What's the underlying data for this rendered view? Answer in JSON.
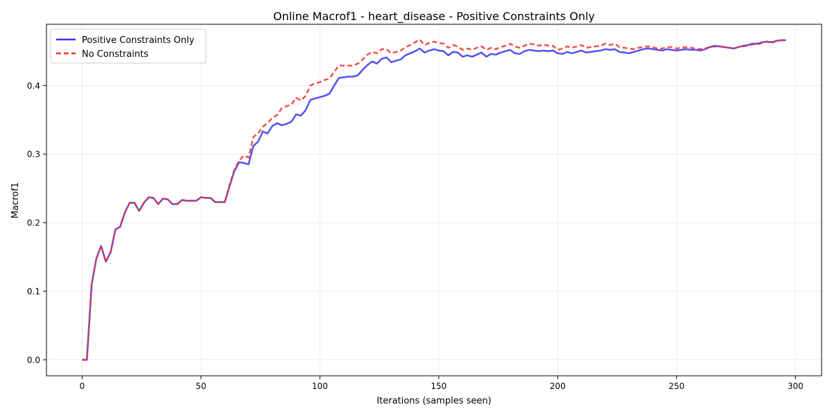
{
  "chart_data": {
    "type": "line",
    "title": "Online Macrof1 - heart_disease - Positive Constraints Only",
    "xlabel": "Iterations (samples seen)",
    "ylabel": "Macrof1",
    "xlim": [
      -15,
      311
    ],
    "ylim": [
      -0.0233,
      0.4893
    ],
    "xticks": [
      0,
      50,
      100,
      150,
      200,
      250,
      300
    ],
    "yticks": [
      0.0,
      0.1,
      0.2,
      0.3,
      0.4
    ],
    "xtick_labels": [
      "0",
      "50",
      "100",
      "150",
      "200",
      "250",
      "300"
    ],
    "ytick_labels": [
      "0.0",
      "0.1",
      "0.2",
      "0.3",
      "0.4"
    ],
    "grid": true,
    "legend_position": "upper-left",
    "series": [
      {
        "name": "Positive Constraints Only",
        "color": "#3333ee",
        "dash": "solid",
        "x": [
          0,
          2,
          4,
          6,
          8,
          10,
          12,
          14,
          16,
          18,
          20,
          22,
          24,
          26,
          28,
          30,
          32,
          34,
          36,
          38,
          40,
          42,
          44,
          46,
          48,
          50,
          52,
          54,
          56,
          58,
          60,
          62,
          64,
          66,
          68,
          70,
          72,
          74,
          76,
          78,
          80,
          82,
          84,
          86,
          88,
          90,
          92,
          94,
          96,
          98,
          100,
          102,
          104,
          106,
          108,
          110,
          112,
          114,
          116,
          118,
          120,
          122,
          124,
          126,
          128,
          130,
          132,
          134,
          136,
          138,
          140,
          142,
          144,
          146,
          148,
          150,
          152,
          154,
          156,
          158,
          160,
          162,
          164,
          166,
          168,
          170,
          172,
          174,
          176,
          178,
          180,
          182,
          184,
          186,
          188,
          190,
          192,
          194,
          196,
          198,
          200,
          202,
          204,
          206,
          208,
          210,
          212,
          214,
          216,
          218,
          220,
          222,
          224,
          226,
          228,
          230,
          232,
          234,
          236,
          238,
          240,
          242,
          244,
          246,
          248,
          250,
          252,
          254,
          256,
          258,
          260,
          262,
          264,
          266,
          268,
          270,
          272,
          274,
          276,
          278,
          280,
          282,
          284,
          286,
          288,
          290,
          292,
          294,
          296
        ],
        "y": [
          0.0,
          0.0,
          0.11,
          0.148,
          0.166,
          0.143,
          0.157,
          0.19,
          0.194,
          0.215,
          0.229,
          0.229,
          0.217,
          0.229,
          0.237,
          0.236,
          0.227,
          0.235,
          0.234,
          0.227,
          0.227,
          0.233,
          0.232,
          0.232,
          0.232,
          0.237,
          0.236,
          0.236,
          0.23,
          0.23,
          0.23,
          0.253,
          0.275,
          0.288,
          0.287,
          0.285,
          0.312,
          0.318,
          0.333,
          0.33,
          0.341,
          0.345,
          0.342,
          0.344,
          0.347,
          0.358,
          0.356,
          0.364,
          0.379,
          0.381,
          0.383,
          0.385,
          0.388,
          0.4,
          0.411,
          0.412,
          0.413,
          0.413,
          0.415,
          0.423,
          0.43,
          0.435,
          0.432,
          0.439,
          0.441,
          0.434,
          0.436,
          0.438,
          0.444,
          0.447,
          0.45,
          0.454,
          0.448,
          0.451,
          0.453,
          0.451,
          0.45,
          0.444,
          0.449,
          0.448,
          0.442,
          0.444,
          0.442,
          0.445,
          0.448,
          0.442,
          0.446,
          0.445,
          0.448,
          0.45,
          0.452,
          0.447,
          0.446,
          0.45,
          0.452,
          0.451,
          0.45,
          0.451,
          0.45,
          0.451,
          0.447,
          0.446,
          0.449,
          0.447,
          0.449,
          0.451,
          0.448,
          0.449,
          0.45,
          0.451,
          0.453,
          0.452,
          0.453,
          0.449,
          0.448,
          0.447,
          0.449,
          0.451,
          0.453,
          0.454,
          0.453,
          0.452,
          0.451,
          0.453,
          0.452,
          0.451,
          0.452,
          0.453,
          0.452,
          0.452,
          0.451,
          0.453,
          0.456,
          0.458,
          0.457,
          0.456,
          0.455,
          0.454,
          0.456,
          0.458,
          0.459,
          0.461,
          0.461,
          0.463,
          0.464,
          0.463,
          0.465,
          0.466,
          0.466
        ]
      },
      {
        "name": "No Constraints",
        "color": "#ee3333",
        "dash": "dashed",
        "x": [
          0,
          2,
          4,
          6,
          8,
          10,
          12,
          14,
          16,
          18,
          20,
          22,
          24,
          26,
          28,
          30,
          32,
          34,
          36,
          38,
          40,
          42,
          44,
          46,
          48,
          50,
          52,
          54,
          56,
          58,
          60,
          62,
          64,
          66,
          68,
          70,
          72,
          74,
          76,
          78,
          80,
          82,
          84,
          86,
          88,
          90,
          92,
          94,
          96,
          98,
          100,
          102,
          104,
          106,
          108,
          110,
          112,
          114,
          116,
          118,
          120,
          122,
          124,
          126,
          128,
          130,
          132,
          134,
          136,
          138,
          140,
          142,
          144,
          146,
          148,
          150,
          152,
          154,
          156,
          158,
          160,
          162,
          164,
          166,
          168,
          170,
          172,
          174,
          176,
          178,
          180,
          182,
          184,
          186,
          188,
          190,
          192,
          194,
          196,
          198,
          200,
          202,
          204,
          206,
          208,
          210,
          212,
          214,
          216,
          218,
          220,
          222,
          224,
          226,
          228,
          230,
          232,
          234,
          236,
          238,
          240,
          242,
          244,
          246,
          248,
          250,
          252,
          254,
          256,
          258,
          260,
          262,
          264,
          266,
          268,
          270,
          272,
          274,
          276,
          278,
          280,
          282,
          284,
          286,
          288,
          290,
          292,
          294,
          296
        ],
        "y": [
          0.0,
          0.0,
          0.11,
          0.148,
          0.166,
          0.143,
          0.157,
          0.19,
          0.194,
          0.215,
          0.229,
          0.229,
          0.217,
          0.229,
          0.237,
          0.236,
          0.227,
          0.235,
          0.234,
          0.227,
          0.227,
          0.233,
          0.232,
          0.232,
          0.232,
          0.237,
          0.236,
          0.236,
          0.23,
          0.23,
          0.23,
          0.255,
          0.277,
          0.29,
          0.298,
          0.295,
          0.325,
          0.33,
          0.34,
          0.345,
          0.353,
          0.357,
          0.367,
          0.37,
          0.372,
          0.382,
          0.378,
          0.385,
          0.4,
          0.403,
          0.405,
          0.408,
          0.41,
          0.42,
          0.429,
          0.429,
          0.429,
          0.429,
          0.432,
          0.438,
          0.445,
          0.449,
          0.447,
          0.453,
          0.453,
          0.447,
          0.449,
          0.451,
          0.456,
          0.459,
          0.463,
          0.467,
          0.459,
          0.462,
          0.464,
          0.462,
          0.461,
          0.455,
          0.459,
          0.457,
          0.452,
          0.454,
          0.452,
          0.455,
          0.457,
          0.452,
          0.455,
          0.453,
          0.456,
          0.458,
          0.461,
          0.457,
          0.455,
          0.458,
          0.461,
          0.46,
          0.458,
          0.46,
          0.458,
          0.458,
          0.452,
          0.454,
          0.457,
          0.455,
          0.457,
          0.459,
          0.455,
          0.456,
          0.457,
          0.458,
          0.461,
          0.459,
          0.461,
          0.456,
          0.455,
          0.454,
          0.453,
          0.455,
          0.456,
          0.457,
          0.456,
          0.454,
          0.454,
          0.456,
          0.456,
          0.454,
          0.455,
          0.456,
          0.455,
          0.454,
          0.453,
          0.454,
          0.456,
          0.457,
          0.457,
          0.456,
          0.455,
          0.454,
          0.456,
          0.457,
          0.458,
          0.46,
          0.46,
          0.462,
          0.464,
          0.462,
          0.465,
          0.466,
          0.466
        ]
      }
    ]
  }
}
